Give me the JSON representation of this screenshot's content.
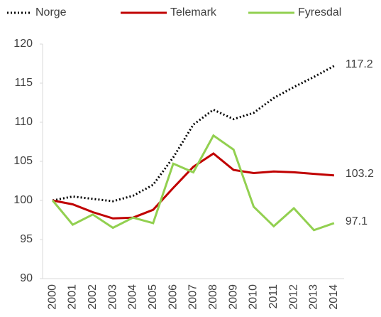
{
  "chart_data": {
    "type": "line",
    "categories": [
      "2000",
      "2001",
      "2002",
      "2003",
      "2004",
      "2005",
      "2006",
      "2007",
      "2008",
      "2009",
      "2010",
      "2011",
      "2012",
      "2013",
      "2014"
    ],
    "series": [
      {
        "name": "Norge",
        "color": "#000000",
        "dashed": true,
        "values": [
          100,
          100.5,
          100.2,
          99.9,
          100.6,
          102,
          105.5,
          109.7,
          111.6,
          110.4,
          111.2,
          113.1,
          114.5,
          115.8,
          117.2
        ]
      },
      {
        "name": "Telemark",
        "color": "#c00000",
        "dashed": false,
        "values": [
          100,
          99.5,
          98.5,
          97.7,
          97.8,
          98.8,
          101.6,
          104.3,
          106,
          103.9,
          103.5,
          103.7,
          103.6,
          103.4,
          103.2
        ]
      },
      {
        "name": "Fyresdal",
        "color": "#92d050",
        "dashed": false,
        "values": [
          100,
          96.9,
          98.2,
          96.5,
          97.8,
          97.1,
          104.7,
          103.6,
          108.3,
          106.5,
          99.2,
          96.7,
          99,
          96.2,
          97.1
        ]
      }
    ],
    "ylim": [
      90,
      120
    ],
    "yticks": [
      90,
      95,
      100,
      105,
      110,
      115,
      120
    ],
    "grid": false,
    "legend": "top"
  }
}
